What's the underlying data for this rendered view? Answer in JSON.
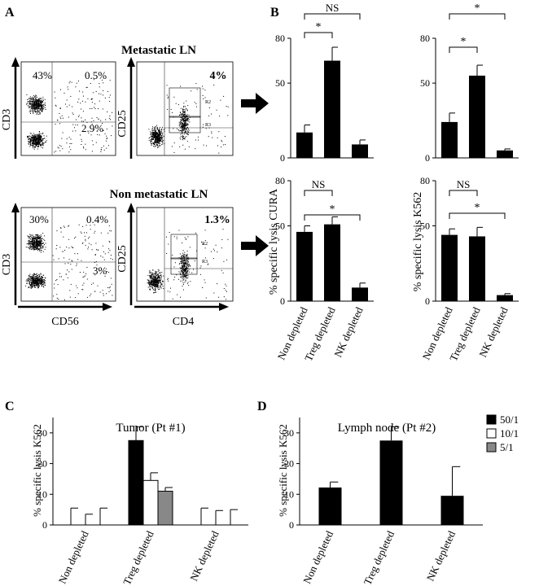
{
  "panels": {
    "A": {
      "label": "A",
      "metastatic_title": "Metastatic LN",
      "non_metastatic_title": "Non metastatic LN",
      "ylabel_cd3": "CD3",
      "ylabel_cd25": "CD25",
      "xlabel_cd56": "CD56",
      "xlabel_cd4": "CD4",
      "gate_r2": "R2",
      "gate_r3": "R3",
      "metastatic": {
        "ul": "43%",
        "ur": "0.5%",
        "lr": "2.9%",
        "treg": "4%"
      },
      "non_metastatic": {
        "ul": "30%",
        "ur": "0.4%",
        "lr": "3%",
        "treg": "1.3%"
      }
    },
    "B": {
      "label": "B",
      "shared_ylabel_curа": "% specific lysis CURA"
    },
    "C": {
      "label": "C"
    },
    "D": {
      "label": "D"
    }
  },
  "chart_data": [
    {
      "id": "B-curA-metastatic",
      "type": "bar",
      "categories": [
        "Non depleted",
        "Treg depleted",
        "NK depleted"
      ],
      "values": [
        17,
        65,
        9
      ],
      "errors": [
        5,
        9,
        3
      ],
      "ylim": [
        0,
        80
      ],
      "yticks": [
        0,
        50,
        80
      ],
      "ylabel": "% specific lysis CURA",
      "significance": [
        {
          "from": 0,
          "to": 2,
          "label": "NS"
        },
        {
          "from": 0,
          "to": 1,
          "label": "*"
        }
      ]
    },
    {
      "id": "B-k562-metastatic",
      "type": "bar",
      "categories": [
        "Non depleted",
        "Treg depleted",
        "NK depleted"
      ],
      "values": [
        24,
        55,
        5
      ],
      "errors": [
        6,
        7,
        1
      ],
      "ylim": [
        0,
        80
      ],
      "yticks": [
        0,
        50,
        80
      ],
      "ylabel": "% specific lysis K562",
      "significance": [
        {
          "from": 0,
          "to": 2,
          "label": "*"
        },
        {
          "from": 0,
          "to": 1,
          "label": "*"
        }
      ]
    },
    {
      "id": "B-curA-nonmetastatic",
      "type": "bar",
      "categories": [
        "Non depleted",
        "Treg depleted",
        "NK depleted"
      ],
      "values": [
        46,
        51,
        9
      ],
      "errors": [
        4,
        5,
        3
      ],
      "ylim": [
        0,
        80
      ],
      "yticks": [
        0,
        50,
        80
      ],
      "ylabel": "% specific lysis CURA",
      "significance": [
        {
          "from": 0,
          "to": 1,
          "label": "NS"
        },
        {
          "from": 0,
          "to": 2,
          "label": "*"
        }
      ]
    },
    {
      "id": "B-k562-nonmetastatic",
      "type": "bar",
      "categories": [
        "Non depleted",
        "Treg depleted",
        "NK depleted"
      ],
      "values": [
        44,
        43,
        4
      ],
      "errors": [
        4,
        6,
        1
      ],
      "ylim": [
        0,
        80
      ],
      "yticks": [
        0,
        50,
        80
      ],
      "ylabel": "% specific lysis K562",
      "significance": [
        {
          "from": 0,
          "to": 1,
          "label": "NS"
        },
        {
          "from": 0,
          "to": 2,
          "label": "*"
        }
      ]
    },
    {
      "id": "C-tumor",
      "type": "bar",
      "title": "Tumor (Pt #1)",
      "ylabel": "% specific lysis K562",
      "categories": [
        "Non depleted",
        "Treg depleted",
        "NK depleted"
      ],
      "ylim": [
        0,
        35
      ],
      "yticks": [
        0,
        10,
        20,
        30
      ],
      "series": [
        {
          "name": "50/1",
          "color": "#000000",
          "values": [
            0,
            27.5,
            0
          ],
          "errors": [
            5.5,
            4.5,
            5.5
          ]
        },
        {
          "name": "10/1",
          "color": "#ffffff",
          "values": [
            0,
            14.5,
            0
          ],
          "errors": [
            3.5,
            2.5,
            4.7
          ]
        },
        {
          "name": "5/1",
          "color": "#888888",
          "values": [
            0,
            11,
            0
          ],
          "errors": [
            5.5,
            1.2,
            5
          ]
        }
      ]
    },
    {
      "id": "D-lymph",
      "type": "bar",
      "title": "Lymph node (Pt #2)",
      "ylabel": "% specific lysis K562",
      "categories": [
        "Non depleted",
        "Treg depleted",
        "NK depleted"
      ],
      "values": [
        12.2,
        27.5,
        9.5
      ],
      "errors": [
        1.8,
        4.5,
        9.5
      ],
      "ylim": [
        0,
        35
      ],
      "yticks": [
        0,
        10,
        20,
        30
      ],
      "legend": [
        {
          "name": "50/1",
          "color": "#000000"
        },
        {
          "name": "10/1",
          "color": "#ffffff"
        },
        {
          "name": "5/1",
          "color": "#888888"
        }
      ]
    }
  ]
}
